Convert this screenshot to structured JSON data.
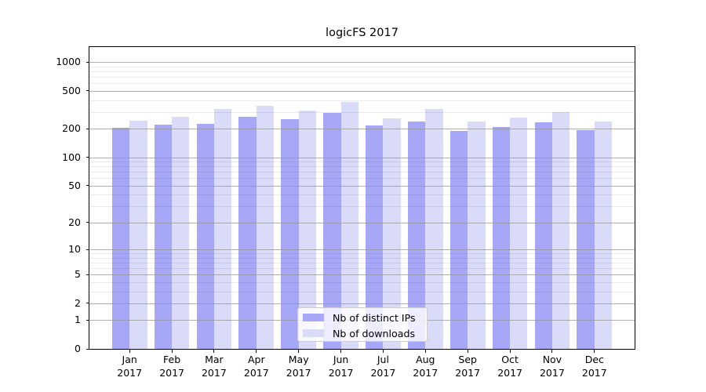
{
  "chart_data": {
    "type": "bar",
    "title": "logicFS 2017",
    "categories": [
      "Jan",
      "Feb",
      "Mar",
      "Apr",
      "May",
      "Jun",
      "Jul",
      "Aug",
      "Sep",
      "Oct",
      "Nov",
      "Dec"
    ],
    "category_year": "2017",
    "series": [
      {
        "name": "Nb of distinct IPs",
        "color": "#a7a7f8",
        "values": [
          206,
          219,
          223,
          268,
          251,
          292,
          216,
          240,
          189,
          209,
          232,
          193
        ]
      },
      {
        "name": "Nb of downloads",
        "color": "#dadaf9",
        "values": [
          245,
          269,
          321,
          351,
          311,
          382,
          255,
          322,
          239,
          260,
          299,
          239
        ]
      }
    ],
    "xlabel": "",
    "ylabel": "",
    "yscale": "log1p",
    "ylim": [
      0,
      1438
    ],
    "yticks": [
      0,
      1,
      2,
      5,
      10,
      20,
      50,
      100,
      200,
      500,
      1000
    ],
    "ytick_labels": [
      "0",
      "1",
      "2",
      "5",
      "10",
      "20",
      "50",
      "100",
      "200",
      "500",
      "1000"
    ],
    "minor_yticks": [
      3,
      4,
      6,
      7,
      8,
      9,
      30,
      40,
      60,
      70,
      80,
      90,
      300,
      400,
      600,
      700,
      800,
      900
    ],
    "grid": true,
    "legend": {
      "position": "lower-center",
      "entries": [
        "Nb of distinct IPs",
        "Nb of downloads"
      ]
    }
  },
  "colors": {
    "bar_dark": "#a7a7f8",
    "bar_light": "#dadaf9",
    "grid_major": "#b0b0b0",
    "grid_minor": "#ebebeb",
    "spine": "#000000",
    "background": "#ffffff"
  }
}
